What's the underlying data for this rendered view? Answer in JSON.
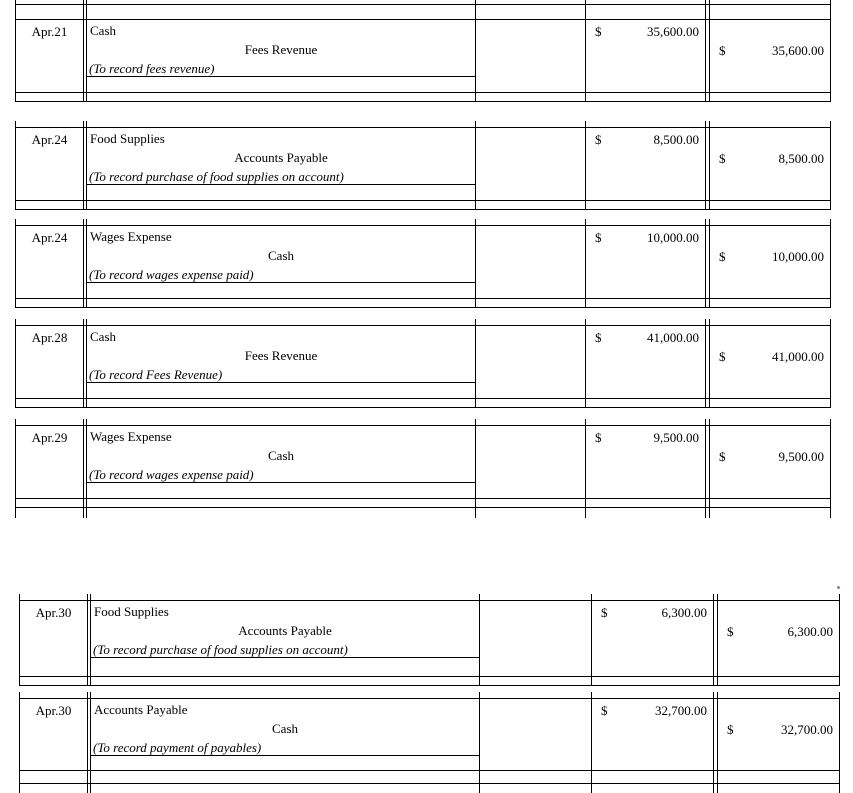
{
  "currency_symbol": "$",
  "entries": [
    {
      "date": "Apr.21",
      "debit_account": "Cash",
      "credit_account": "Fees Revenue",
      "memo": "(To record fees revenue)",
      "debit_amount": "35,600.00",
      "credit_amount": "35,600.00"
    },
    {
      "date": "Apr.24",
      "debit_account": "Food Supplies",
      "credit_account": "Accounts Payable",
      "memo": "(To record purchase of food supplies on account)",
      "debit_amount": "8,500.00",
      "credit_amount": "8,500.00"
    },
    {
      "date": "Apr.24",
      "debit_account": "Wages Expense",
      "credit_account": "Cash",
      "memo": "(To record wages expense paid)",
      "debit_amount": "10,000.00",
      "credit_amount": "10,000.00"
    },
    {
      "date": "Apr.28",
      "debit_account": "Cash",
      "credit_account": "Fees Revenue",
      "memo": "(To record Fees Revenue)",
      "debit_amount": "41,000.00",
      "credit_amount": "41,000.00"
    },
    {
      "date": "Apr.29",
      "debit_account": "Wages Expense",
      "credit_account": "Cash",
      "memo": "(To record wages expense paid)",
      "debit_amount": "9,500.00",
      "credit_amount": "9,500.00"
    },
    {
      "date": "Apr.30",
      "debit_account": "Food Supplies",
      "credit_account": "Accounts Payable",
      "memo": "(To record purchase of food supplies on account)",
      "debit_amount": "6,300.00",
      "credit_amount": "6,300.00"
    },
    {
      "date": "Apr.30",
      "debit_account": "Accounts Payable",
      "credit_account": "Cash",
      "memo": "(To record payment of payables)",
      "debit_amount": "32,700.00",
      "credit_amount": "32,700.00"
    }
  ],
  "colors": {
    "border": "#000000",
    "background": "#ffffff",
    "stray_dot": "#7c87b6"
  }
}
